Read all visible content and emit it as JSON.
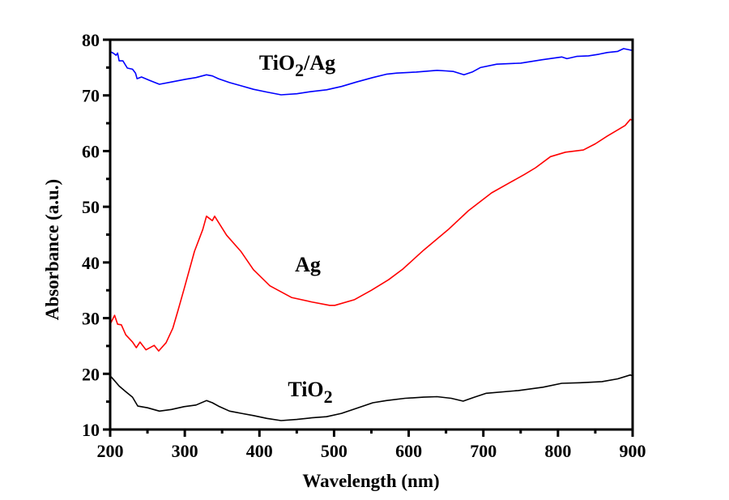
{
  "chart_data": {
    "type": "line",
    "title": "",
    "xlabel": "Wavelength (nm)",
    "ylabel": "Absorbance (a.u.)",
    "xlim": [
      200,
      900
    ],
    "ylim": [
      10,
      80
    ],
    "xticks": [
      200,
      300,
      400,
      500,
      600,
      700,
      800,
      900
    ],
    "xtick_labels": [
      "200",
      "300",
      "400",
      "500",
      "600",
      "700",
      "800",
      "900"
    ],
    "yticks": [
      10,
      20,
      30,
      40,
      50,
      60,
      70,
      80
    ],
    "ytick_labels": [
      "10",
      "20",
      "30",
      "40",
      "50",
      "60",
      "70",
      "80"
    ],
    "x_minor_step": 50,
    "y_minor_step": 5,
    "grid": false,
    "legend": "none (inline labels)",
    "series": [
      {
        "name": "TiO2/Ag",
        "label_main": "TiO",
        "label_sub": "2",
        "label_tail": "/Ag",
        "color": "#0000ff",
        "label_at": [
          367,
          77
        ],
        "x": [
          200,
          201,
          204,
          208,
          210,
          212,
          217,
          223,
          230,
          234,
          236,
          242,
          253,
          266,
          282,
          301,
          315,
          329,
          337,
          345,
          360,
          376,
          392,
          410,
          429,
          450,
          470,
          490,
          510,
          530,
          552,
          570,
          584,
          610,
          638,
          650,
          660,
          674,
          685,
          696,
          718,
          750,
          779,
          805,
          812,
          825,
          841,
          855,
          866,
          880,
          888,
          899,
          900
        ],
        "y": [
          77.5,
          77.8,
          77.6,
          77.2,
          77.6,
          76.2,
          76.2,
          74.9,
          74.7,
          74.0,
          73.0,
          73.3,
          72.7,
          72.0,
          72.4,
          72.9,
          73.2,
          73.7,
          73.5,
          73.0,
          72.3,
          71.7,
          71.1,
          70.6,
          70.1,
          70.3,
          70.7,
          71.0,
          71.6,
          72.4,
          73.2,
          73.8,
          74.0,
          74.2,
          74.5,
          74.4,
          74.3,
          73.7,
          74.2,
          75.0,
          75.6,
          75.8,
          76.4,
          76.9,
          76.6,
          77.0,
          77.1,
          77.4,
          77.7,
          77.9,
          78.4,
          78.1,
          78.3
        ]
      },
      {
        "name": "Ag",
        "label_main": "Ag",
        "label_sub": "",
        "label_tail": "",
        "color": "#ff0000",
        "label_at": [
          380,
          326
        ],
        "x": [
          200,
          206,
          210,
          215,
          221,
          230,
          235,
          240,
          248,
          259,
          265,
          275,
          284,
          291,
          299,
          313,
          324,
          329,
          337,
          340,
          356,
          375,
          392,
          414,
          443,
          470,
          494,
          501,
          527,
          550,
          573,
          592,
          620,
          653,
          680,
          711,
          735,
          755,
          770,
          790,
          810,
          834,
          850,
          866,
          880,
          890,
          897,
          900
        ],
        "y": [
          28.9,
          30.5,
          28.9,
          28.8,
          27.0,
          25.7,
          24.7,
          25.7,
          24.3,
          25.1,
          24.1,
          25.6,
          28.2,
          31.4,
          35.2,
          42.0,
          45.9,
          48.3,
          47.5,
          48.3,
          44.9,
          42.0,
          38.7,
          35.8,
          33.7,
          32.9,
          32.3,
          32.3,
          33.3,
          35.0,
          36.9,
          38.8,
          42.2,
          45.9,
          49.3,
          52.5,
          54.3,
          55.8,
          57.0,
          59.0,
          59.8,
          60.2,
          61.3,
          62.7,
          63.8,
          64.6,
          65.7,
          65.5
        ]
      },
      {
        "name": "TiO2",
        "label_main": "TiO",
        "label_sub": "2",
        "label_tail": "",
        "color": "#000000",
        "label_at": [
          383,
          480
        ],
        "x": [
          200,
          201,
          205,
          212,
          220,
          230,
          237,
          250,
          266,
          282,
          299,
          315,
          329,
          337,
          345,
          360,
          376,
          392,
          410,
          429,
          450,
          470,
          490,
          510,
          530,
          552,
          570,
          595,
          620,
          638,
          657,
          673,
          688,
          704,
          747,
          780,
          805,
          830,
          859,
          880,
          897,
          900
        ],
        "y": [
          18.8,
          19.5,
          18.9,
          17.8,
          16.9,
          15.8,
          14.2,
          13.9,
          13.3,
          13.6,
          14.1,
          14.4,
          15.2,
          14.8,
          14.2,
          13.3,
          12.9,
          12.5,
          12.0,
          11.6,
          11.8,
          12.1,
          12.3,
          12.9,
          13.8,
          14.8,
          15.2,
          15.6,
          15.8,
          15.9,
          15.6,
          15.1,
          15.8,
          16.5,
          17.0,
          17.6,
          18.3,
          18.4,
          18.6,
          19.1,
          19.8,
          19.6
        ]
      }
    ]
  }
}
